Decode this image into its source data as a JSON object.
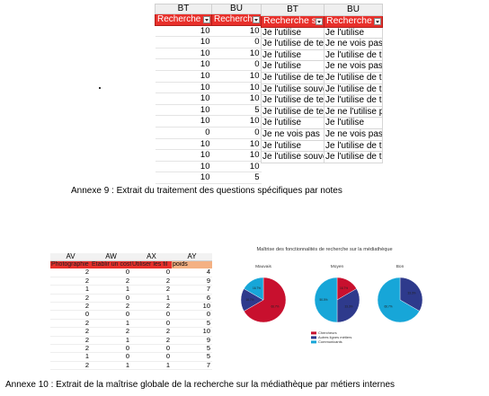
{
  "annex9": {
    "numeric_table": {
      "columns": [
        "BT",
        "BU"
      ],
      "header_cells": [
        "Recherche s",
        "Recherche"
      ],
      "rows": [
        [
          "10",
          "10"
        ],
        [
          "10",
          "0"
        ],
        [
          "10",
          "10"
        ],
        [
          "10",
          "0"
        ],
        [
          "10",
          "10"
        ],
        [
          "10",
          "10"
        ],
        [
          "10",
          "10"
        ],
        [
          "10",
          "5"
        ],
        [
          "10",
          "10"
        ],
        [
          "0",
          "0"
        ],
        [
          "10",
          "10"
        ],
        [
          "10",
          "10"
        ],
        [
          "10",
          "10"
        ],
        [
          "10",
          "5"
        ]
      ]
    },
    "text_table": {
      "columns": [
        "BT",
        "BU"
      ],
      "header_cells": [
        "Recherche s",
        "Recherche"
      ],
      "rows": [
        [
          "Je l'utilise",
          "Je l'utilise"
        ],
        [
          "Je l'utilise de ter",
          "Je ne vois pas"
        ],
        [
          "Je l'utilise",
          "Je l'utilise de t"
        ],
        [
          "Je l'utilise",
          "Je ne vois pas"
        ],
        [
          "Je l'utilise de ter",
          "Je l'utilise de t"
        ],
        [
          "Je l'utilise souve",
          "Je l'utilise de t"
        ],
        [
          "Je l'utilise de ter",
          "Je l'utilise de t"
        ],
        [
          "Je l'utilise de ter",
          "Je ne l'utilise p"
        ],
        [
          "Je l'utilise",
          "Je l'utilise"
        ],
        [
          "Je ne vois pas",
          "Je ne vois pas"
        ],
        [
          "Je l'utilise",
          "Je l'utilise de t"
        ],
        [
          "Je l'utilise souve",
          "Je l'utilise de t"
        ]
      ]
    },
    "caption": "Annexe 9 : Extrait du traitement des questions spécifiques par notes"
  },
  "annex10": {
    "table": {
      "columns": [
        "AV",
        "AW",
        "AX",
        "AY"
      ],
      "header_cells": [
        "Photographie",
        "Etablir un cost",
        "Utiliser les fil",
        "poids"
      ],
      "rows": [
        [
          "2",
          "0",
          "0",
          "4"
        ],
        [
          "2",
          "2",
          "2",
          "9"
        ],
        [
          "1",
          "1",
          "2",
          "7"
        ],
        [
          "2",
          "0",
          "1",
          "6"
        ],
        [
          "2",
          "2",
          "2",
          "10"
        ],
        [
          "0",
          "0",
          "0",
          "0"
        ],
        [
          "2",
          "1",
          "0",
          "5"
        ],
        [
          "2",
          "2",
          "2",
          "10"
        ],
        [
          "2",
          "1",
          "2",
          "9"
        ],
        [
          "2",
          "0",
          "0",
          "5"
        ],
        [
          "1",
          "0",
          "0",
          "5"
        ],
        [
          "2",
          "1",
          "1",
          "7"
        ]
      ]
    },
    "caption": "Annexe 10 : Extrait de la maîtrise globale de la recherche sur la médiathèque par métiers internes"
  },
  "chart_data": {
    "type": "pie",
    "title": "Maîtrise des fonctionnalités de recherche sur la médiathèque",
    "series_names": [
      "Chercheurs",
      "Autres lignes métiers",
      "Communicants"
    ],
    "colors": [
      "#c8102e",
      "#2e3a8c",
      "#17a6d8"
    ],
    "pies": [
      {
        "label": "Mauvais",
        "values": [
          66.7,
          16.7,
          16.7
        ],
        "value_labels": [
          "66.7%",
          "16.7%",
          "16.7%"
        ]
      },
      {
        "label": "Moyen",
        "values": [
          16.7,
          33.3,
          50.0
        ],
        "value_labels": [
          "16.7%",
          "33.3%",
          "50.0%"
        ]
      },
      {
        "label": "Bon",
        "values": [
          0,
          33.3,
          66.7
        ],
        "value_labels": [
          "",
          "33.3%",
          "66.7%"
        ]
      }
    ]
  }
}
